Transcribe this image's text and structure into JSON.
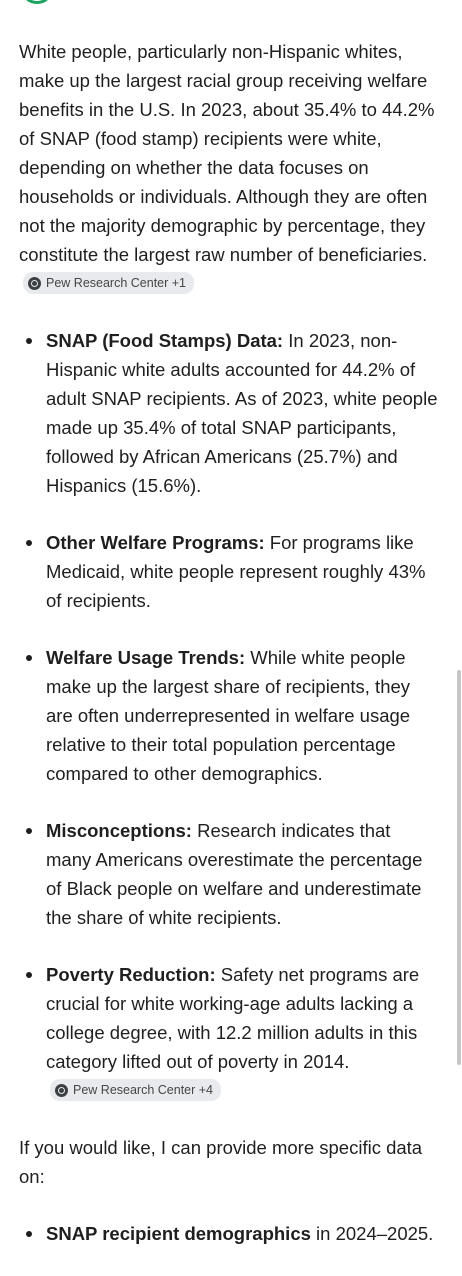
{
  "intro": {
    "text": "White people, particularly non-Hispanic whites, make up the largest racial group receiving welfare benefits in the U.S. In 2023, about 35.4% to 44.2% of SNAP (food stamp) recipients were white, depending on whether the data focuses on households or individuals. Although they are often not the majority demographic by percentage, they constitute the largest raw number of beneficiaries.",
    "source_chip": "Pew Research Center +1"
  },
  "bullets": [
    {
      "title": "SNAP (Food Stamps) Data:",
      "text": " In 2023, non-Hispanic white adults accounted for 44.2% of adult SNAP recipients. As of 2023, white people made up 35.4% of total SNAP participants, followed by African Americans (25.7%) and Hispanics (15.6%)."
    },
    {
      "title": "Other Welfare Programs:",
      "text": " For programs like Medicaid, white people represent roughly 43% of recipients."
    },
    {
      "title": "Welfare Usage Trends:",
      "text": " While white people make up the largest share of recipients, they are often underrepresented in welfare usage relative to their total population percentage compared to other demographics."
    },
    {
      "title": "Misconceptions:",
      "text": " Research indicates that many Americans overestimate the percentage of Black people on welfare and underestimate the share of white recipients."
    },
    {
      "title": "Poverty Reduction:",
      "text": " Safety net programs are crucial for white working-age adults lacking a college degree, with 12.2 million adults in this category lifted out of poverty in 2014.",
      "source_chip": "Pew Research Center +4"
    }
  ],
  "offer": {
    "text": "If you would like, I can provide more specific data on:"
  },
  "offer_bullets": [
    {
      "title": "SNAP recipient demographics",
      "text": " in 2024–2025."
    }
  ],
  "colors": {
    "accent_green": "#1ea362",
    "chip_background": "#e8eaed",
    "text": "#1f1f1f"
  },
  "icons": {
    "top": "assistant-avatar-icon",
    "chip": "source-favicon-icon"
  }
}
